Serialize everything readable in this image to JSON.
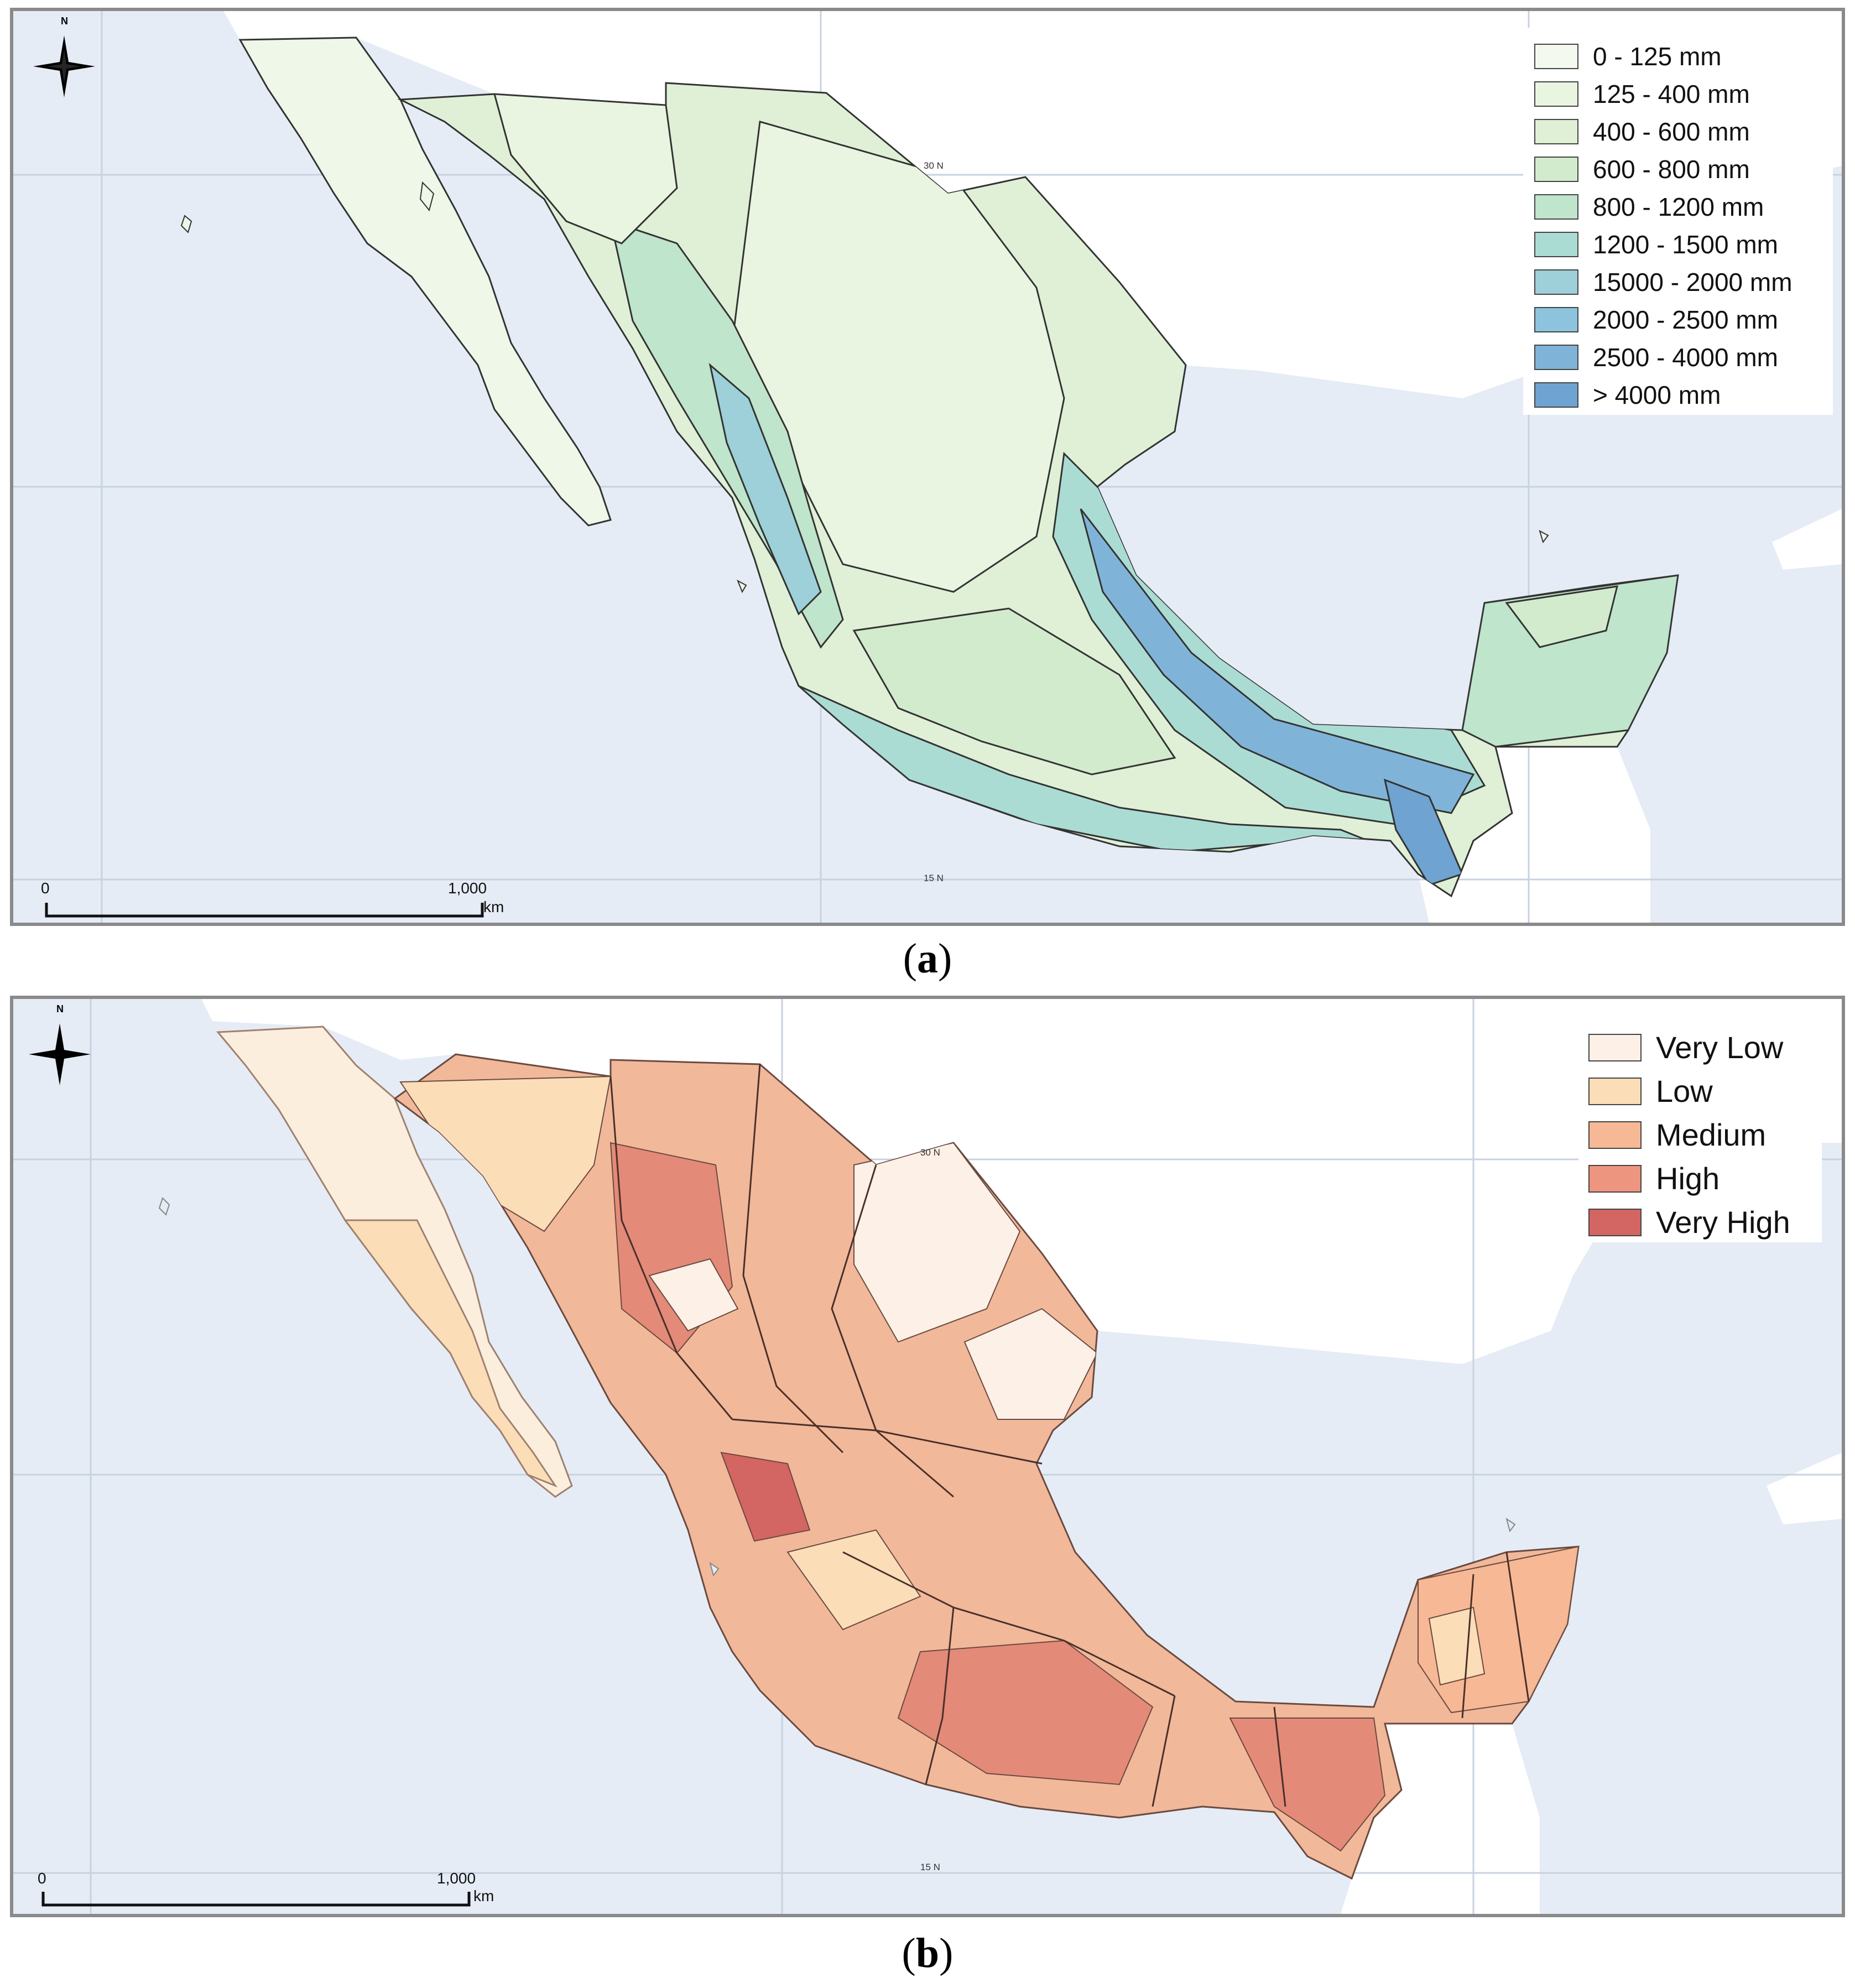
{
  "panel_a": {
    "caption_letter": "a",
    "north": "N",
    "lat_upper": "30 N",
    "lat_lower": "15 N",
    "scale_start": "0",
    "scale_end": "1,000",
    "scale_unit": "km",
    "legend": [
      {
        "label": "0 - 125 mm",
        "color": "#f4f9ef"
      },
      {
        "label": "125 - 400 mm",
        "color": "#e9f5e1"
      },
      {
        "label": "400 - 600 mm",
        "color": "#dff0d6"
      },
      {
        "label": "600 - 800 mm",
        "color": "#d2ebcd"
      },
      {
        "label": "800 - 1200 mm",
        "color": "#bfe5cc"
      },
      {
        "label": "1200 - 1500 mm",
        "color": "#abdcd3"
      },
      {
        "label": "15000 - 2000 mm",
        "color": "#9dd0d8"
      },
      {
        "label": "2000 - 2500 mm",
        "color": "#8ec3dd"
      },
      {
        "label": "2500 - 4000 mm",
        "color": "#7fb4d8"
      },
      {
        "label": "> 4000 mm",
        "color": "#6fa3d1"
      }
    ]
  },
  "panel_b": {
    "caption_letter": "b",
    "north": "N",
    "lat_upper": "30 N",
    "lat_lower": "15 N",
    "scale_start": "0",
    "scale_end": "1,000",
    "scale_unit": "km",
    "legend": [
      {
        "label": "Very Low",
        "color": "#fdf0e6"
      },
      {
        "label": "Low",
        "color": "#fbddb8"
      },
      {
        "label": "Medium",
        "color": "#f6b895"
      },
      {
        "label": "High",
        "color": "#ee9580"
      },
      {
        "label": "Very High",
        "color": "#d36563"
      }
    ]
  },
  "colors": {
    "ocean": "#e5ecf5",
    "foreign_land": "#ffffff",
    "graticule": "#c8d2e0"
  }
}
